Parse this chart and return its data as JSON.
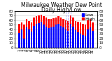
{
  "title": "Milwaukee Weather Dew Point",
  "subtitle": "Daily High/Low",
  "background_color": "#ffffff",
  "grid_color": "#cccccc",
  "ylim": [
    0,
    80
  ],
  "yticks": [
    0,
    10,
    20,
    30,
    40,
    50,
    60,
    70,
    80
  ],
  "ytick_labels": [
    "0",
    "10",
    "20",
    "30",
    "40",
    "50",
    "60",
    "70",
    "80"
  ],
  "categories": [
    "1",
    "2",
    "3",
    "4",
    "5",
    "6",
    "7",
    "8",
    "9",
    "10",
    "11",
    "12",
    "13",
    "14",
    "15",
    "16",
    "17",
    "18",
    "19",
    "20",
    "21",
    "22",
    "23",
    "24",
    "25",
    "26",
    "27",
    "28",
    "29",
    "30",
    "31"
  ],
  "high_values": [
    52,
    55,
    50,
    62,
    58,
    55,
    65,
    68,
    70,
    72,
    68,
    65,
    63,
    62,
    64,
    66,
    68,
    65,
    62,
    60,
    58,
    70,
    65,
    58,
    56,
    55,
    52,
    50,
    60,
    62,
    55
  ],
  "low_values": [
    32,
    40,
    20,
    44,
    40,
    35,
    48,
    52,
    54,
    56,
    50,
    46,
    42,
    44,
    46,
    50,
    52,
    48,
    44,
    40,
    36,
    52,
    46,
    38,
    34,
    30,
    28,
    26,
    40,
    44,
    36
  ],
  "high_color": "#ff0000",
  "low_color": "#0000ff",
  "legend_high": "High",
  "legend_low": "Low",
  "title_fontsize": 5.5,
  "tick_fontsize": 3.5,
  "legend_fontsize": 4.5,
  "dashed_lines": [
    19,
    20,
    21
  ],
  "dashed_color": "#aaaaff"
}
